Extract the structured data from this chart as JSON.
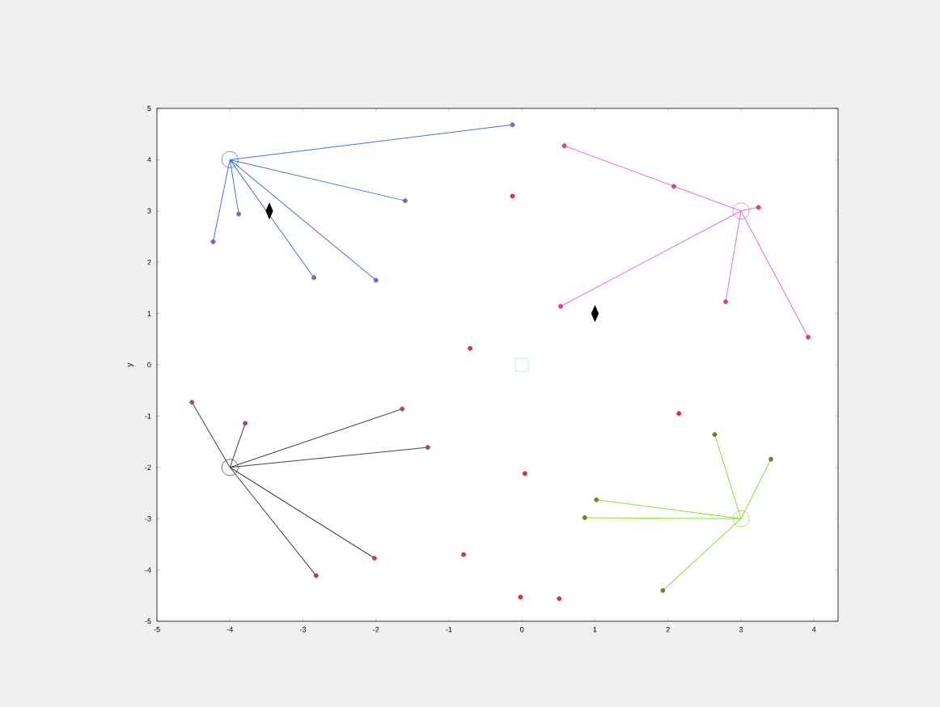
{
  "chart_data": {
    "type": "scatter",
    "ylabel": "y",
    "xlim": [
      -5,
      4.33
    ],
    "ylim": [
      -5,
      5
    ],
    "xticks": [
      -5,
      -4,
      -3,
      -2,
      -1,
      0,
      1,
      2,
      3,
      4
    ],
    "yticks": [
      -5,
      -4,
      -3,
      -2,
      -1,
      0,
      1,
      2,
      3,
      4,
      5
    ],
    "grid": false,
    "series": [
      {
        "type": "line",
        "color": "#4a6fd8",
        "marker": "none",
        "x": [
          -4,
          -0.13,
          -4,
          -1.6,
          -4,
          -2.0,
          -4,
          -2.85,
          -4,
          -3.88,
          -4,
          -4.23
        ],
        "values": [
          4,
          4.68,
          4,
          3.2,
          4,
          1.65,
          4,
          1.7,
          4,
          2.94,
          4,
          2.4
        ]
      },
      {
        "type": "line",
        "color": "#e070e0",
        "marker": "none",
        "x": [
          3,
          0.58,
          3,
          2.08,
          3,
          3.24,
          3,
          0.53,
          3,
          2.79,
          3,
          3.92
        ],
        "values": [
          3,
          4.27,
          3,
          3.48,
          3,
          3.07,
          3,
          1.14,
          3,
          1.23,
          3,
          0.54
        ]
      },
      {
        "type": "line",
        "color": "#444444",
        "marker": "none",
        "x": [
          -4,
          -4.52,
          -4,
          -3.79,
          -4,
          -1.64,
          -4,
          -1.29,
          -4,
          -2.02,
          -4,
          -2.82
        ],
        "values": [
          -2,
          -0.73,
          -2,
          -1.14,
          -2,
          -0.86,
          -2,
          -1.61,
          -2,
          -3.77,
          -2,
          -4.11
        ]
      },
      {
        "type": "line",
        "color": "#8fdc3c",
        "marker": "none",
        "x": [
          3,
          2.64,
          3,
          3.41,
          3,
          1.02,
          3,
          0.86,
          3,
          1.93
        ],
        "values": [
          -3,
          -1.36,
          -3,
          -1.84,
          -3,
          -2.63,
          -3,
          -2.98,
          -3,
          -4.4
        ]
      },
      {
        "color": "#8a5fc0",
        "marker": "circle",
        "x": [
          -0.13,
          -1.6,
          -2.0,
          -2.85,
          -3.88,
          -4.23
        ],
        "values": [
          4.68,
          3.2,
          1.65,
          1.7,
          2.94,
          2.4
        ]
      },
      {
        "color": "#e0407a",
        "marker": "circle",
        "x": [
          0.58,
          2.08,
          3.24,
          0.53,
          2.79,
          3.92
        ],
        "values": [
          4.27,
          3.48,
          3.07,
          1.14,
          1.23,
          0.54
        ]
      },
      {
        "color": "#a05050",
        "marker": "circle",
        "x": [
          -4.52,
          -3.79,
          -1.64,
          -1.29,
          -2.02,
          -2.82
        ],
        "values": [
          -0.73,
          -1.14,
          -0.86,
          -1.61,
          -3.77,
          -4.11
        ]
      },
      {
        "color": "#807a30",
        "marker": "circle",
        "x": [
          2.64,
          3.41,
          1.02,
          0.86,
          1.93
        ],
        "values": [
          -1.36,
          -1.84,
          -2.63,
          -2.98,
          -4.4
        ]
      },
      {
        "color": "#e03030",
        "marker": "circle",
        "x": [
          -0.13,
          -0.71,
          0.04,
          -0.8,
          -0.02,
          2.15,
          0.51
        ],
        "values": [
          3.29,
          0.32,
          -2.12,
          -3.7,
          -4.53,
          -0.95,
          -4.56
        ]
      },
      {
        "color": "#4a6fd8",
        "marker": "circle",
        "x": [
          -4
        ],
        "values": [
          4
        ]
      },
      {
        "color": "#e070e0",
        "marker": "circle",
        "x": [
          3
        ],
        "values": [
          3
        ]
      },
      {
        "color": "#444444",
        "marker": "circle",
        "x": [
          -4
        ],
        "values": [
          -2
        ]
      },
      {
        "color": "#8fdc3c",
        "marker": "circle",
        "x": [
          3
        ],
        "values": [
          -3
        ]
      },
      {
        "color": "#9ff0f0",
        "marker": "square",
        "x": [
          0
        ],
        "values": [
          0
        ]
      },
      {
        "color": "#000000",
        "marker": "diamond",
        "x": [
          -3.46,
          1.0
        ],
        "values": [
          3.0,
          1.0
        ]
      }
    ]
  }
}
